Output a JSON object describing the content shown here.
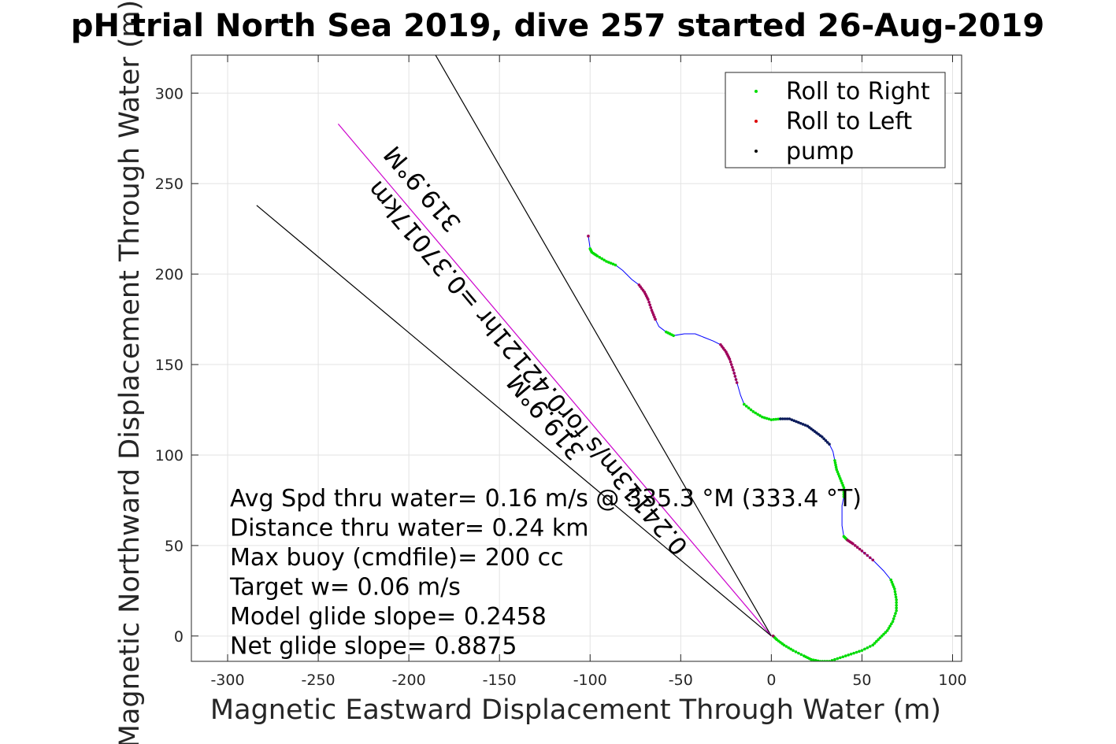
{
  "chart_data": {
    "type": "scatter",
    "title": "pH trial North Sea 2019, dive 257 started 26-Aug-2019",
    "xlabel": "Magnetic Eastward Displacement Through Water (m)",
    "ylabel": "Magnetic Northward Displacement Through Water (m)",
    "xlim": [
      -320,
      105
    ],
    "ylim": [
      -14,
      321
    ],
    "xticks": [
      -300,
      -250,
      -200,
      -150,
      -100,
      -50,
      0,
      50,
      100
    ],
    "yticks": [
      0,
      50,
      100,
      150,
      200,
      250,
      300
    ],
    "grid": true,
    "legend_position": "top-right",
    "legend": [
      {
        "label": "Roll to Right",
        "color": "#00dd00"
      },
      {
        "label": "Roll to Left",
        "color": "#dd0000"
      },
      {
        "label": "pump",
        "color": "#000000"
      }
    ],
    "track": {
      "name": "glider track",
      "color": "#0000ff",
      "points": [
        [
          -101,
          221
        ],
        [
          -100,
          214
        ],
        [
          -99,
          212
        ],
        [
          -96,
          210
        ],
        [
          -91,
          207
        ],
        [
          -86,
          205
        ],
        [
          -82,
          202
        ],
        [
          -77,
          197
        ],
        [
          -73,
          194
        ],
        [
          -70,
          190
        ],
        [
          -68,
          186
        ],
        [
          -66,
          180
        ],
        [
          -64,
          175
        ],
        [
          -62,
          171
        ],
        [
          -58,
          168
        ],
        [
          -54,
          166
        ],
        [
          -48,
          167
        ],
        [
          -42,
          167
        ],
        [
          -37,
          165
        ],
        [
          -32,
          163
        ],
        [
          -28,
          161
        ],
        [
          -25,
          157
        ],
        [
          -23,
          153
        ],
        [
          -21,
          147
        ],
        [
          -19,
          140
        ],
        [
          -17,
          133
        ],
        [
          -15,
          128
        ],
        [
          -10,
          124
        ],
        [
          -5,
          121
        ],
        [
          0,
          119.5
        ],
        [
          5,
          120
        ],
        [
          10,
          120
        ],
        [
          15,
          118
        ],
        [
          20,
          116
        ],
        [
          24,
          113
        ],
        [
          28,
          110
        ],
        [
          32,
          106
        ],
        [
          34,
          102
        ],
        [
          35,
          97
        ],
        [
          36,
          92
        ],
        [
          38,
          87
        ],
        [
          40,
          82
        ],
        [
          40,
          77
        ],
        [
          39,
          72
        ],
        [
          39,
          67
        ],
        [
          39,
          61
        ],
        [
          40,
          55
        ],
        [
          42,
          53
        ],
        [
          45,
          51
        ],
        [
          50,
          47
        ],
        [
          56,
          42
        ],
        [
          62,
          36
        ],
        [
          66,
          31
        ],
        [
          68,
          26
        ],
        [
          69,
          20
        ],
        [
          69,
          14
        ],
        [
          67,
          8
        ],
        [
          64,
          3
        ],
        [
          60,
          -1
        ],
        [
          56,
          -5
        ],
        [
          50,
          -8
        ],
        [
          44,
          -10
        ],
        [
          38,
          -12
        ],
        [
          32,
          -14
        ],
        [
          27,
          -14
        ],
        [
          22,
          -13
        ],
        [
          18,
          -11
        ],
        [
          12,
          -8
        ],
        [
          7,
          -5
        ],
        [
          3,
          -2
        ],
        [
          1,
          0
        ]
      ],
      "roll_right_ranges": [
        [
          1,
          5
        ],
        [
          14,
          15
        ],
        [
          26,
          30
        ],
        [
          38,
          42
        ],
        [
          46,
          47
        ],
        [
          52,
          70
        ]
      ],
      "roll_left_ranges": [
        [
          0,
          0
        ],
        [
          8,
          12
        ],
        [
          20,
          24
        ],
        [
          47,
          50
        ],
        [
          70,
          70
        ]
      ],
      "pump_ranges": [
        [
          30,
          36
        ]
      ]
    },
    "lines": [
      {
        "name": "line-a",
        "color": "#000000",
        "points": [
          [
            0,
            0
          ],
          [
            -187,
            324
          ]
        ]
      },
      {
        "name": "line-b",
        "color": "#cc00cc",
        "points": [
          [
            0,
            0
          ],
          [
            -239,
            283
          ]
        ]
      },
      {
        "name": "line-c",
        "color": "#000000",
        "points": [
          [
            0,
            0
          ],
          [
            -284,
            238
          ]
        ]
      }
    ],
    "line_annotations": [
      {
        "text": "319.9°M",
        "x": -189,
        "y": 250,
        "angle_deg": 49.8
      },
      {
        "text": "0.24113m/s for0.42121hr =0.37017km",
        "x": -131,
        "y": 151,
        "angle_deg": 49.8
      },
      {
        "text": "319.9°M",
        "x": -121,
        "y": 124,
        "angle_deg": 49.8
      }
    ],
    "stats": [
      "Avg Spd thru water=  0.16 m/s @ 335.3 °M (333.4 °T)",
      "Distance thru water=  0.24 km",
      "Max buoy (cmdfile)= 200 cc",
      "Target w= 0.06 m/s",
      "Model glide slope= 0.2458",
      "Net glide slope= 0.8875"
    ]
  }
}
